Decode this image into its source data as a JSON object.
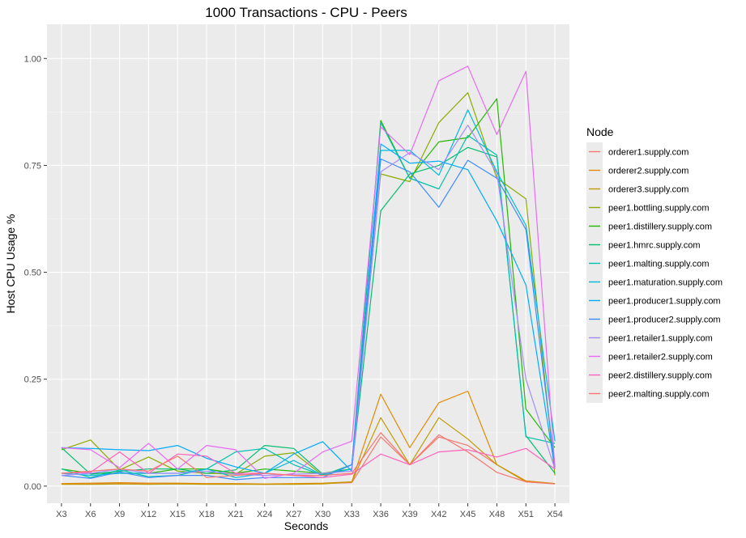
{
  "chart_data": {
    "type": "line",
    "title": "1000 Transactions - CPU - Peers",
    "xlabel": "Seconds",
    "ylabel": "Host CPU Usage %",
    "ylim": [
      -0.04,
      1.08
    ],
    "yticks": [
      0.0,
      0.25,
      0.5,
      0.75,
      1.0
    ],
    "ytick_labels": [
      "0.00",
      "0.25",
      "0.50",
      "0.75",
      "1.00"
    ],
    "categories": [
      "X3",
      "X6",
      "X9",
      "X12",
      "X15",
      "X18",
      "X21",
      "X24",
      "X27",
      "X30",
      "X33",
      "X36",
      "X39",
      "X42",
      "X45",
      "X48",
      "X51",
      "X54"
    ],
    "grid": true,
    "background": "#EBEBEB",
    "legend": {
      "title": "Node",
      "position": "right"
    },
    "series": [
      {
        "name": "orderer1.supply.com",
        "color": "#F8766D",
        "values": [
          0.005,
          0.005,
          0.006,
          0.005,
          0.005,
          0.005,
          0.005,
          0.004,
          0.005,
          0.006,
          0.008,
          0.115,
          0.05,
          0.115,
          0.095,
          0.05,
          0.012,
          0.006
        ]
      },
      {
        "name": "orderer2.supply.com",
        "color": "#E18A00",
        "values": [
          0.006,
          0.007,
          0.008,
          0.007,
          0.007,
          0.006,
          0.006,
          0.005,
          0.006,
          0.007,
          0.01,
          0.215,
          0.09,
          0.195,
          0.222,
          0.05,
          0.012,
          0.006
        ]
      },
      {
        "name": "orderer3.supply.com",
        "color": "#BE9C00",
        "values": [
          0.004,
          0.004,
          0.005,
          0.004,
          0.005,
          0.004,
          0.004,
          0.004,
          0.004,
          0.005,
          0.01,
          0.16,
          0.05,
          0.16,
          0.11,
          0.05,
          0.01,
          0.006
        ]
      },
      {
        "name": "peer1.bottling.supply.com",
        "color": "#8CAB00",
        "values": [
          0.085,
          0.108,
          0.038,
          0.068,
          0.035,
          0.03,
          0.028,
          0.07,
          0.078,
          0.025,
          0.05,
          0.73,
          0.712,
          0.85,
          0.92,
          0.72,
          0.672,
          0.025
        ]
      },
      {
        "name": "peer1.distillery.supply.com",
        "color": "#24B700",
        "values": [
          0.04,
          0.03,
          0.03,
          0.03,
          0.04,
          0.04,
          0.03,
          0.04,
          0.035,
          0.03,
          0.04,
          0.855,
          0.72,
          0.805,
          0.815,
          0.906,
          0.18,
          0.09
        ]
      },
      {
        "name": "peer1.hmrc.supply.com",
        "color": "#00BE70",
        "values": [
          0.09,
          0.028,
          0.035,
          0.04,
          0.04,
          0.03,
          0.038,
          0.095,
          0.088,
          0.028,
          0.04,
          0.644,
          0.73,
          0.75,
          0.792,
          0.77,
          0.118,
          0.03
        ]
      },
      {
        "name": "peer1.malting.supply.com",
        "color": "#00C1AB",
        "values": [
          0.04,
          0.02,
          0.038,
          0.022,
          0.025,
          0.04,
          0.08,
          0.088,
          0.05,
          0.025,
          0.05,
          0.85,
          0.72,
          0.695,
          0.82,
          0.774,
          0.115,
          0.1
        ]
      },
      {
        "name": "peer1.maturation.supply.com",
        "color": "#00BBDA",
        "values": [
          0.03,
          0.025,
          0.03,
          0.03,
          0.03,
          0.04,
          0.02,
          0.03,
          0.06,
          0.025,
          0.04,
          0.785,
          0.785,
          0.727,
          0.88,
          0.735,
          0.61,
          0.105
        ]
      },
      {
        "name": "peer1.producer1.supply.com",
        "color": "#00ACFC",
        "values": [
          0.09,
          0.088,
          0.085,
          0.083,
          0.095,
          0.065,
          0.045,
          0.03,
          0.075,
          0.104,
          0.035,
          0.8,
          0.755,
          0.76,
          0.74,
          0.62,
          0.47,
          0.04
        ]
      },
      {
        "name": "peer1.producer2.supply.com",
        "color": "#3C8BFF",
        "values": [
          0.025,
          0.018,
          0.033,
          0.02,
          0.025,
          0.025,
          0.015,
          0.02,
          0.02,
          0.02,
          0.05,
          0.765,
          0.735,
          0.652,
          0.762,
          0.72,
          0.6,
          0.045
        ]
      },
      {
        "name": "peer1.retailer1.supply.com",
        "color": "#A58AFF",
        "values": [
          0.025,
          0.03,
          0.04,
          0.03,
          0.03,
          0.035,
          0.028,
          0.025,
          0.028,
          0.03,
          0.035,
          0.735,
          0.78,
          0.74,
          0.844,
          0.732,
          0.25,
          0.04
        ]
      },
      {
        "name": "peer1.retailer2.supply.com",
        "color": "#E76BF3",
        "values": [
          0.09,
          0.085,
          0.043,
          0.1,
          0.04,
          0.095,
          0.085,
          0.018,
          0.03,
          0.08,
          0.105,
          0.84,
          0.775,
          0.948,
          0.982,
          0.822,
          0.97,
          0.045
        ]
      },
      {
        "name": "peer2.distillery.supply.com",
        "color": "#FF62BC",
        "values": [
          0.03,
          0.032,
          0.08,
          0.03,
          0.075,
          0.07,
          0.03,
          0.03,
          0.025,
          0.02,
          0.028,
          0.075,
          0.05,
          0.08,
          0.085,
          0.068,
          0.088,
          0.04
        ]
      },
      {
        "name": "peer2.malting.supply.com",
        "color": "#F8766D",
        "values": [
          0.03,
          0.035,
          0.04,
          0.035,
          0.07,
          0.02,
          0.025,
          0.03,
          0.025,
          0.025,
          0.03,
          0.125,
          0.05,
          0.12,
          0.08,
          0.032,
          0.01,
          0.005
        ]
      }
    ]
  }
}
